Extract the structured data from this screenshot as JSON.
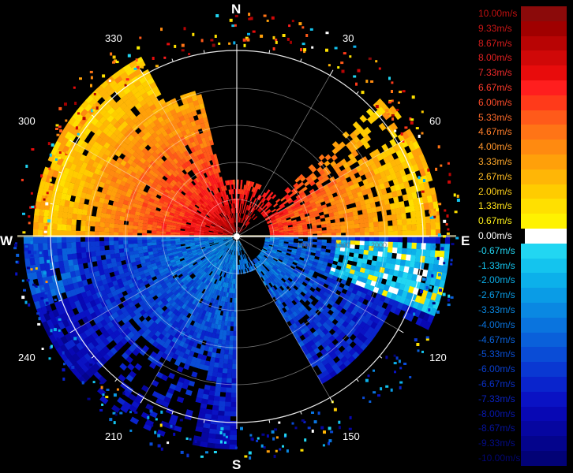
{
  "compass": {
    "north": "N",
    "south": "S",
    "east": "E",
    "west": "W"
  },
  "azimuth_labels": [
    "30",
    "60",
    "120",
    "150",
    "210",
    "240",
    "300",
    "330"
  ],
  "range_labels": [
    "1000",
    "1500",
    "2000"
  ],
  "legend": {
    "entries": [
      {
        "label": "10.00m/s",
        "color": "#8b0a0a",
        "text_color": "#c01010"
      },
      {
        "label": "9.33m/s",
        "color": "#a00000",
        "text_color": "#c81616"
      },
      {
        "label": "8.67m/s",
        "color": "#b80404",
        "text_color": "#d41c1c"
      },
      {
        "label": "8.00m/s",
        "color": "#d00808",
        "text_color": "#e02020"
      },
      {
        "label": "7.33m/s",
        "color": "#e80c0c",
        "text_color": "#ee2a2a"
      },
      {
        "label": "6.67m/s",
        "color": "#ff1e1e",
        "text_color": "#ff3a2a"
      },
      {
        "label": "6.00m/s",
        "color": "#ff3a1a",
        "text_color": "#ff4c2a"
      },
      {
        "label": "5.33m/s",
        "color": "#ff5a1a",
        "text_color": "#ff6a2a"
      },
      {
        "label": "4.67m/s",
        "color": "#ff7416",
        "text_color": "#ff7e2a"
      },
      {
        "label": "4.00m/s",
        "color": "#ff8a10",
        "text_color": "#ff942a"
      },
      {
        "label": "3.33m/s",
        "color": "#ffa00a",
        "text_color": "#ffa82a"
      },
      {
        "label": "2.67m/s",
        "color": "#ffb606",
        "text_color": "#ffbc22"
      },
      {
        "label": "2.00m/s",
        "color": "#ffcc00",
        "text_color": "#ffd01a"
      },
      {
        "label": "1.33m/s",
        "color": "#ffe000",
        "text_color": "#ffe21a"
      },
      {
        "label": "0.67m/s",
        "color": "#fff200",
        "text_color": "#fff21a"
      },
      {
        "label": "0.00m/s",
        "color": "#ffffff",
        "text_color": "#ffffff"
      },
      {
        "label": "-0.67m/s",
        "color": "#22d6f2",
        "text_color": "#22d6f2"
      },
      {
        "label": "-1.33m/s",
        "color": "#14c4ee",
        "text_color": "#14c4ee"
      },
      {
        "label": "-2.00m/s",
        "color": "#0cb0ea",
        "text_color": "#0cb0ea"
      },
      {
        "label": "-2.67m/s",
        "color": "#0a9ce6",
        "text_color": "#0a9ce6"
      },
      {
        "label": "-3.33m/s",
        "color": "#0a88e2",
        "text_color": "#0a88e2"
      },
      {
        "label": "-4.00m/s",
        "color": "#0a74de",
        "text_color": "#0a74de"
      },
      {
        "label": "-4.67m/s",
        "color": "#0a60da",
        "text_color": "#0a62da"
      },
      {
        "label": "-5.33m/s",
        "color": "#0a4cd6",
        "text_color": "#0a50d6"
      },
      {
        "label": "-6.00m/s",
        "color": "#0a38d2",
        "text_color": "#0a40d2"
      },
      {
        "label": "-6.67m/s",
        "color": "#0a24cc",
        "text_color": "#0a30c8"
      },
      {
        "label": "-7.33m/s",
        "color": "#0a12c4",
        "text_color": "#0a22c0"
      },
      {
        "label": "-8.00m/s",
        "color": "#0808b4",
        "text_color": "#0818b0"
      },
      {
        "label": "-8.67m/s",
        "color": "#0606a0",
        "text_color": "#06129c"
      },
      {
        "label": "-9.33m/s",
        "color": "#04048c",
        "text_color": "#040c88"
      },
      {
        "label": "-10.00m/s",
        "color": "#020276",
        "text_color": "#020672"
      }
    ]
  },
  "colors": {
    "grid": "#ffffff",
    "background": "#000000"
  }
}
